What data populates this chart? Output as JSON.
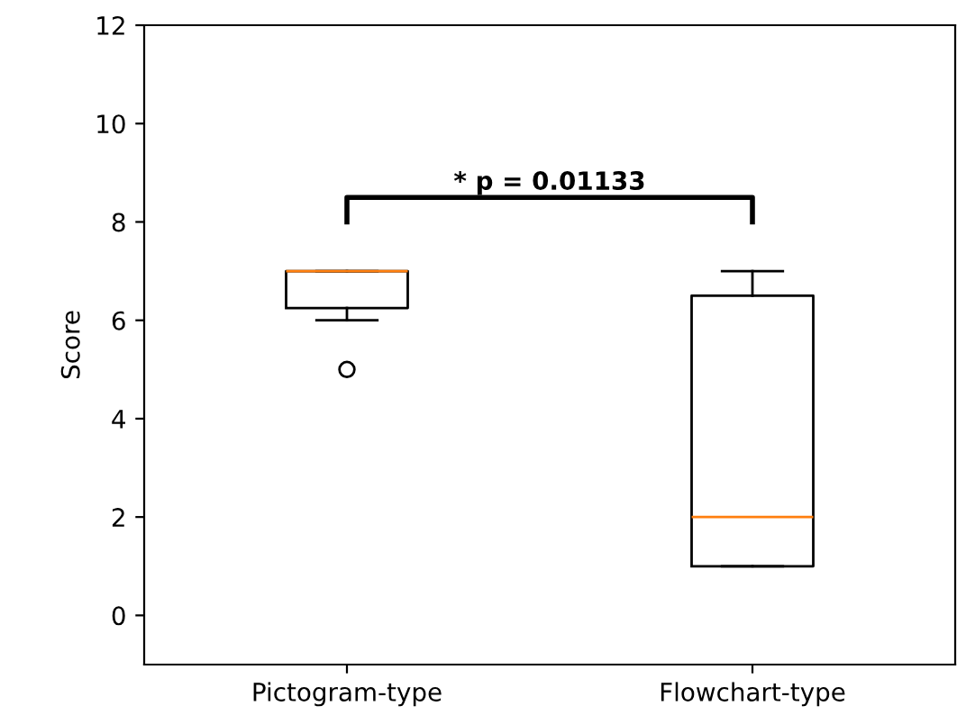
{
  "chart_data": {
    "type": "box",
    "ylabel": "Score",
    "categories": [
      "Pictogram-type",
      "Flowchart-type"
    ],
    "boxes": [
      {
        "low": 6,
        "q1": 6.25,
        "median": 7,
        "q3": 7,
        "high": 7,
        "outliers": [
          5
        ]
      },
      {
        "low": 1,
        "q1": 1,
        "median": 2,
        "q3": 6.5,
        "high": 7
      }
    ],
    "ylim": [
      -1,
      12
    ],
    "yticks": [
      0,
      2,
      4,
      6,
      8,
      10,
      12
    ],
    "grid": false,
    "annotations": [
      "* p = 0.01133"
    ]
  }
}
